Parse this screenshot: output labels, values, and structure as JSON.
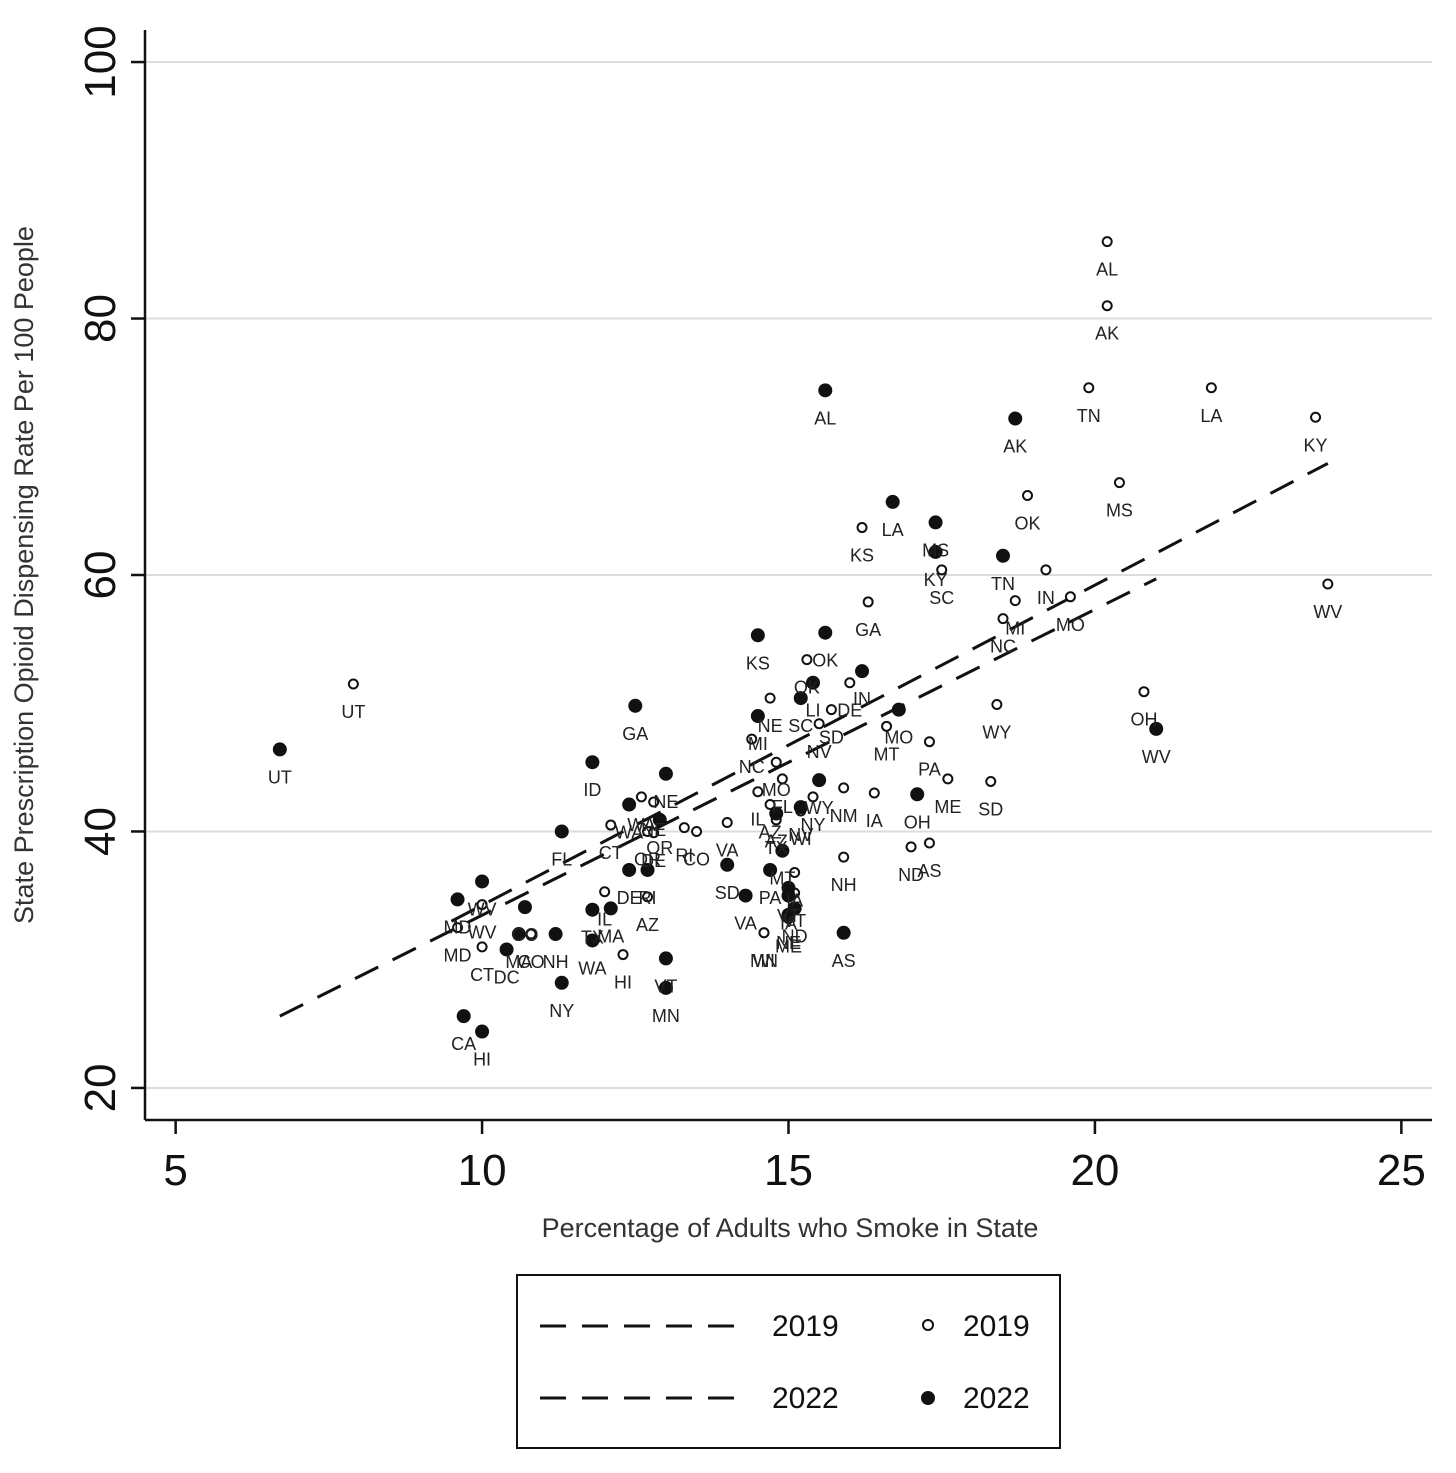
{
  "chart_data": {
    "type": "scatter",
    "title": "",
    "xlabel": "Percentage of Adults who Smoke in State",
    "ylabel": "State Prescription Opioid Dispensing Rate Per 100 People",
    "xlim": [
      4.5,
      25.5
    ],
    "ylim": [
      17.5,
      102.5
    ],
    "xticks": [
      5,
      10,
      15,
      20,
      25
    ],
    "yticks": [
      20,
      40,
      60,
      80,
      100
    ],
    "grid": "horizontal",
    "legend_position": "bottom",
    "legend": {
      "line_2019": "2019",
      "marker_2019": "2019",
      "line_2022": "2022",
      "marker_2022": "2022"
    },
    "series": [
      {
        "name": "2019",
        "marker": "hollow-circle",
        "fit_line": {
          "x": [
            9.5,
            23.8
          ],
          "y": [
            33.0,
            68.7
          ]
        },
        "points": [
          {
            "label": "AL",
            "x": 20.2,
            "y": 86.0
          },
          {
            "label": "AK",
            "x": 20.2,
            "y": 81.0
          },
          {
            "label": "TN",
            "x": 19.9,
            "y": 74.6
          },
          {
            "label": "LA",
            "x": 21.9,
            "y": 74.6
          },
          {
            "label": "KY",
            "x": 23.6,
            "y": 72.3
          },
          {
            "label": "MS",
            "x": 20.4,
            "y": 67.2
          },
          {
            "label": "OK",
            "x": 18.9,
            "y": 66.2
          },
          {
            "label": "KS",
            "x": 16.2,
            "y": 63.7
          },
          {
            "label": "SC",
            "x": 17.5,
            "y": 60.4
          },
          {
            "label": "IN",
            "x": 19.2,
            "y": 60.4
          },
          {
            "label": "WV",
            "x": 23.8,
            "y": 59.3
          },
          {
            "label": "MO",
            "x": 19.6,
            "y": 58.3
          },
          {
            "label": "GA",
            "x": 16.3,
            "y": 57.9
          },
          {
            "label": "MI",
            "x": 18.7,
            "y": 58.0
          },
          {
            "label": "NC",
            "x": 18.5,
            "y": 56.6
          },
          {
            "label": "UT",
            "x": 7.9,
            "y": 51.5
          },
          {
            "label": "OK",
            "x": 15.3,
            "y": 53.4
          },
          {
            "label": "OH",
            "x": 20.8,
            "y": 50.9
          },
          {
            "label": "NE",
            "x": 14.7,
            "y": 50.4
          },
          {
            "label": "WY",
            "x": 18.4,
            "y": 49.9
          },
          {
            "label": "SD",
            "x": 15.7,
            "y": 49.5
          },
          {
            "label": "DE",
            "x": 16.0,
            "y": 51.6
          },
          {
            "label": "NV",
            "x": 15.5,
            "y": 48.4
          },
          {
            "label": "MT",
            "x": 16.6,
            "y": 48.2
          },
          {
            "label": "NC",
            "x": 14.4,
            "y": 47.2
          },
          {
            "label": "PA",
            "x": 17.3,
            "y": 47.0
          },
          {
            "label": "MO",
            "x": 14.8,
            "y": 45.4
          },
          {
            "label": "ME",
            "x": 17.6,
            "y": 44.1
          },
          {
            "label": "SD",
            "x": 18.3,
            "y": 43.9
          },
          {
            "label": "FL",
            "x": 14.9,
            "y": 44.1
          },
          {
            "label": "NM",
            "x": 15.9,
            "y": 43.4
          },
          {
            "label": "IA",
            "x": 16.4,
            "y": 43.0
          },
          {
            "label": "IL",
            "x": 14.5,
            "y": 43.1
          },
          {
            "label": "AZ",
            "x": 14.7,
            "y": 42.1
          },
          {
            "label": "NY",
            "x": 15.4,
            "y": 42.7
          },
          {
            "label": "TX",
            "x": 14.8,
            "y": 40.9
          },
          {
            "label": "WI",
            "x": 15.2,
            "y": 41.6
          },
          {
            "label": "WA",
            "x": 12.6,
            "y": 42.7
          },
          {
            "label": "NE",
            "x": 12.8,
            "y": 42.3
          },
          {
            "label": "OR",
            "x": 12.7,
            "y": 40.0
          },
          {
            "label": "CT",
            "x": 12.1,
            "y": 40.5
          },
          {
            "label": "DE",
            "x": 12.8,
            "y": 39.9
          },
          {
            "label": "RI",
            "x": 13.3,
            "y": 40.3
          },
          {
            "label": "CO",
            "x": 13.5,
            "y": 40.0
          },
          {
            "label": "VA",
            "x": 14.0,
            "y": 40.7
          },
          {
            "label": "ND",
            "x": 17.0,
            "y": 38.8
          },
          {
            "label": "AS",
            "x": 17.3,
            "y": 39.1
          },
          {
            "label": "NH",
            "x": 15.9,
            "y": 38.0
          },
          {
            "label": "IA",
            "x": 15.1,
            "y": 36.8
          },
          {
            "label": "IL",
            "x": 12.0,
            "y": 35.3
          },
          {
            "label": "AZ",
            "x": 12.7,
            "y": 34.9
          },
          {
            "label": "VT",
            "x": 15.1,
            "y": 35.2
          },
          {
            "label": "WV",
            "x": 10.0,
            "y": 34.3
          },
          {
            "label": "WI",
            "x": 14.6,
            "y": 32.1
          },
          {
            "label": "MD",
            "x": 9.6,
            "y": 32.5
          },
          {
            "label": "CT",
            "x": 10.0,
            "y": 31.0
          },
          {
            "label": "CO",
            "x": 10.8,
            "y": 32.0
          },
          {
            "label": "HI",
            "x": 12.3,
            "y": 30.4
          },
          {
            "label": "ME",
            "x": 15.0,
            "y": 33.2
          },
          {
            "label": "MN",
            "x": 14.6,
            "y": 32.1
          }
        ]
      },
      {
        "name": "2022",
        "marker": "filled-circle",
        "fit_line": {
          "x": [
            6.7,
            21.0
          ],
          "y": [
            25.6,
            59.7
          ]
        },
        "points": [
          {
            "label": "AL",
            "x": 15.6,
            "y": 74.4
          },
          {
            "label": "AK",
            "x": 18.7,
            "y": 72.2
          },
          {
            "label": "LA",
            "x": 16.7,
            "y": 65.7
          },
          {
            "label": "MS",
            "x": 17.4,
            "y": 64.1
          },
          {
            "label": "KY",
            "x": 17.4,
            "y": 61.8
          },
          {
            "label": "TN",
            "x": 18.5,
            "y": 61.5
          },
          {
            "label": "KS",
            "x": 14.5,
            "y": 55.3
          },
          {
            "label": "OK",
            "x": 15.6,
            "y": 55.5
          },
          {
            "label": "IN",
            "x": 16.2,
            "y": 52.5
          },
          {
            "label": "LI",
            "x": 15.4,
            "y": 51.6
          },
          {
            "label": "SC",
            "x": 15.2,
            "y": 50.4
          },
          {
            "label": "GA",
            "x": 12.5,
            "y": 49.8
          },
          {
            "label": "MI",
            "x": 14.5,
            "y": 49.0
          },
          {
            "label": "MO",
            "x": 16.8,
            "y": 49.5
          },
          {
            "label": "UT",
            "x": 6.7,
            "y": 46.4
          },
          {
            "label": "WV",
            "x": 21.0,
            "y": 48.0
          },
          {
            "label": "ID",
            "x": 11.8,
            "y": 45.4
          },
          {
            "label": "NE",
            "x": 13.0,
            "y": 44.5
          },
          {
            "label": "WY",
            "x": 15.5,
            "y": 44.0
          },
          {
            "label": "OH",
            "x": 17.1,
            "y": 42.9
          },
          {
            "label": "WA",
            "x": 12.4,
            "y": 42.1
          },
          {
            "label": "NV",
            "x": 15.2,
            "y": 41.9
          },
          {
            "label": "AZ",
            "x": 14.8,
            "y": 41.4
          },
          {
            "label": "FL",
            "x": 11.3,
            "y": 40.0
          },
          {
            "label": "OR",
            "x": 12.9,
            "y": 40.9
          },
          {
            "label": "MT",
            "x": 14.9,
            "y": 38.5
          },
          {
            "label": "SD",
            "x": 14.0,
            "y": 37.4
          },
          {
            "label": "DE",
            "x": 12.4,
            "y": 37.0
          },
          {
            "label": "RI",
            "x": 12.7,
            "y": 37.0
          },
          {
            "label": "PA",
            "x": 14.7,
            "y": 37.0
          },
          {
            "label": "WV",
            "x": 10.0,
            "y": 36.1
          },
          {
            "label": "VT",
            "x": 15.0,
            "y": 35.6
          },
          {
            "label": "IA",
            "x": 15.0,
            "y": 35.0
          },
          {
            "label": "VA",
            "x": 14.3,
            "y": 35.0
          },
          {
            "label": "MD",
            "x": 9.6,
            "y": 34.7
          },
          {
            "label": "CO",
            "x": 10.7,
            "y": 34.1
          },
          {
            "label": "MA",
            "x": 12.1,
            "y": 34.0
          },
          {
            "label": "TX",
            "x": 11.8,
            "y": 33.9
          },
          {
            "label": "ND",
            "x": 15.1,
            "y": 34.0
          },
          {
            "label": "NE",
            "x": 15.0,
            "y": 33.5
          },
          {
            "label": "MA",
            "x": 10.6,
            "y": 32.0
          },
          {
            "label": "NH",
            "x": 11.2,
            "y": 32.0
          },
          {
            "label": "WA",
            "x": 11.8,
            "y": 31.5
          },
          {
            "label": "AS",
            "x": 15.9,
            "y": 32.1
          },
          {
            "label": "DC",
            "x": 10.4,
            "y": 30.8
          },
          {
            "label": "VT",
            "x": 13.0,
            "y": 30.1
          },
          {
            "label": "NY",
            "x": 11.3,
            "y": 28.2
          },
          {
            "label": "MN",
            "x": 13.0,
            "y": 27.8
          },
          {
            "label": "CA",
            "x": 9.7,
            "y": 25.6
          },
          {
            "label": "HI",
            "x": 10.0,
            "y": 24.4
          }
        ]
      }
    ]
  }
}
